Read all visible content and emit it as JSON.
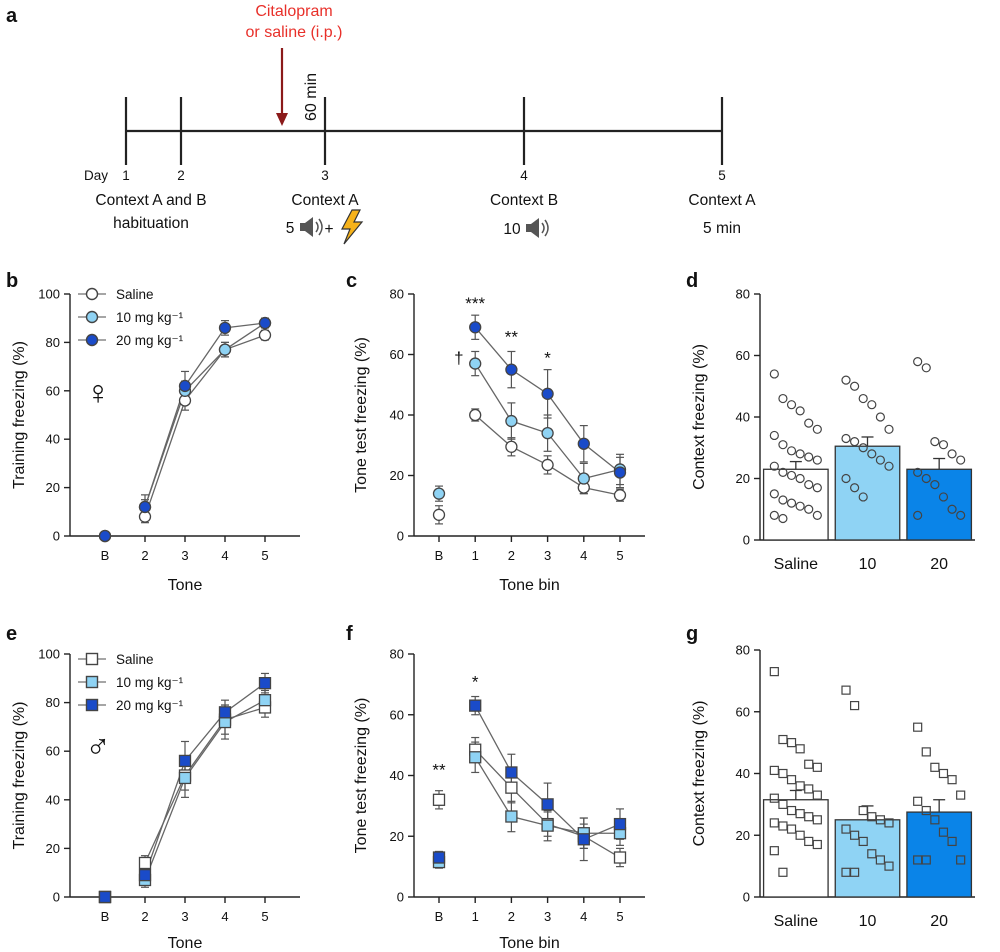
{
  "colors": {
    "saline": "#ffffff",
    "low": "#8fd3f4",
    "high": "#1a4bc9",
    "bar_high": "#0a84e8",
    "drug_arrow": "#8b1a1a",
    "drug_text": "#e8302a",
    "line": "#333333"
  },
  "timeline": {
    "panel_label": "a",
    "drug_label": [
      "Citalopram",
      "or saline (i.p.)"
    ],
    "delay_label": "60 min",
    "day_prefix": "Day",
    "days": [
      {
        "day": "1",
        "lines": [
          "Context A and B",
          "habituation"
        ]
      },
      {
        "day": "2",
        "lines": []
      },
      {
        "day": "3",
        "lines": [
          "Context A",
          "5"
        ]
      },
      {
        "day": "4",
        "lines": [
          "Context B",
          "10"
        ]
      },
      {
        "day": "5",
        "lines": [
          "Context A",
          "5 min"
        ]
      }
    ],
    "plus": "+"
  },
  "legend": {
    "saline": "Saline",
    "low": "10 mg kg⁻¹",
    "high": "20 mg kg⁻¹"
  },
  "sex_symbols": {
    "female": "♀",
    "male": "♂"
  },
  "chart_data": [
    {
      "id": "b",
      "panel_label": "b",
      "type": "line",
      "marker": "circle",
      "sex": "female",
      "xlabel": "Tone",
      "ylabel": "Training freezing (%)",
      "categories": [
        "B",
        "2",
        "3",
        "4",
        "5"
      ],
      "ylim": [
        0,
        100
      ],
      "yticks": [
        0,
        20,
        40,
        60,
        80,
        100
      ],
      "series": [
        {
          "name": "Saline",
          "values": [
            0,
            8,
            56,
            77,
            83
          ],
          "errors": [
            1,
            2.5,
            4,
            3,
            2
          ]
        },
        {
          "name": "10 mg kg⁻¹",
          "values": [
            0,
            12,
            60,
            77,
            88
          ],
          "errors": [
            1,
            3,
            4,
            3,
            2
          ]
        },
        {
          "name": "20 mg kg⁻¹",
          "values": [
            0,
            12,
            62,
            86,
            88
          ],
          "errors": [
            1,
            5,
            6,
            3,
            2
          ]
        }
      ],
      "annotations": []
    },
    {
      "id": "c",
      "panel_label": "c",
      "type": "line",
      "marker": "circle",
      "xlabel": "Tone bin",
      "ylabel": "Tone test freezing (%)",
      "categories": [
        "B",
        "1",
        "2",
        "3",
        "4",
        "5"
      ],
      "ylim": [
        0,
        80
      ],
      "yticks": [
        0,
        20,
        40,
        60,
        80
      ],
      "series": [
        {
          "name": "Saline",
          "values": [
            7,
            40,
            29.5,
            23.5,
            16,
            13.5
          ],
          "errors": [
            3,
            2,
            3,
            3,
            2,
            2
          ]
        },
        {
          "name": "10 mg kg⁻¹",
          "values": [
            14,
            57,
            38,
            34,
            19,
            22
          ],
          "errors": [
            2.5,
            4,
            6,
            6,
            5,
            5
          ]
        },
        {
          "name": "20 mg kg⁻¹",
          "values": [
            null,
            69,
            55,
            47,
            30.5,
            21
          ],
          "errors": [
            0,
            4,
            6,
            8,
            6,
            5
          ]
        }
      ],
      "annotations": [
        {
          "cat": "1",
          "text": "***",
          "y": 75
        },
        {
          "cat": "2",
          "text": "**",
          "y": 64
        },
        {
          "cat": "3",
          "text": "*",
          "y": 57
        },
        {
          "cat": "1",
          "text": "†",
          "y": 57,
          "dx": -0.45
        }
      ]
    },
    {
      "id": "d",
      "panel_label": "d",
      "type": "bar",
      "marker": "circle",
      "ylabel": "Context freezing (%)",
      "categories": [
        "Saline",
        "10",
        "20"
      ],
      "ylim": [
        0,
        80
      ],
      "yticks": [
        0,
        20,
        40,
        60,
        80
      ],
      "values": [
        23,
        30.5,
        23
      ],
      "errors": [
        2.5,
        3,
        3.5
      ],
      "points": [
        [
          54,
          46,
          44,
          42,
          38,
          36,
          34,
          31,
          29,
          28,
          27,
          26,
          24,
          22,
          21,
          20,
          18,
          17,
          15,
          13,
          12,
          11,
          10,
          8,
          8,
          7
        ],
        [
          52,
          50,
          46,
          44,
          40,
          36,
          33,
          32,
          30,
          28,
          26,
          24,
          20,
          17,
          14
        ],
        [
          58,
          56,
          32,
          31,
          28,
          26,
          22,
          20,
          18,
          14,
          10,
          8,
          8
        ]
      ]
    },
    {
      "id": "e",
      "panel_label": "e",
      "type": "line",
      "marker": "square",
      "sex": "male",
      "xlabel": "Tone",
      "ylabel": "Training freezing (%)",
      "categories": [
        "B",
        "2",
        "3",
        "4",
        "5"
      ],
      "ylim": [
        0,
        100
      ],
      "yticks": [
        0,
        20,
        40,
        60,
        80,
        100
      ],
      "series": [
        {
          "name": "Saline",
          "values": [
            0,
            14,
            50,
            73,
            78
          ],
          "errors": [
            1,
            3,
            6,
            6,
            4
          ]
        },
        {
          "name": "10 mg kg⁻¹",
          "values": [
            0,
            7,
            49,
            72,
            81
          ],
          "errors": [
            1,
            3,
            8,
            7,
            4
          ]
        },
        {
          "name": "20 mg kg⁻¹",
          "values": [
            0,
            9,
            56,
            76,
            88
          ],
          "errors": [
            1,
            4,
            8,
            5,
            4
          ]
        }
      ],
      "annotations": []
    },
    {
      "id": "f",
      "panel_label": "f",
      "type": "line",
      "marker": "square",
      "xlabel": "Tone bin",
      "ylabel": "Tone test freezing (%)",
      "categories": [
        "B",
        "1",
        "2",
        "3",
        "4",
        "5"
      ],
      "ylim": [
        0,
        80
      ],
      "yticks": [
        0,
        20,
        40,
        60,
        80
      ],
      "series": [
        {
          "name": "Saline",
          "values": [
            32,
            48.5,
            36,
            24,
            20,
            13
          ],
          "errors": [
            3,
            4,
            5,
            4,
            4,
            3
          ]
        },
        {
          "name": "10 mg kg⁻¹",
          "values": [
            11.5,
            46,
            26.5,
            23.5,
            21,
            21
          ],
          "errors": [
            2,
            5,
            5,
            5,
            5,
            4
          ]
        },
        {
          "name": "20 mg kg⁻¹",
          "values": [
            13,
            63,
            41,
            30.5,
            19,
            24
          ],
          "errors": [
            2,
            3,
            6,
            7,
            7,
            5
          ]
        }
      ],
      "annotations": [
        {
          "cat": "B",
          "text": "**",
          "y": 40
        },
        {
          "cat": "1",
          "text": "*",
          "y": 69
        }
      ]
    },
    {
      "id": "g",
      "panel_label": "g",
      "type": "bar",
      "marker": "square",
      "ylabel": "Context freezing (%)",
      "categories": [
        "Saline",
        "10",
        "20"
      ],
      "ylim": [
        0,
        80
      ],
      "yticks": [
        0,
        20,
        40,
        60,
        80
      ],
      "values": [
        31.5,
        25,
        27.5
      ],
      "errors": [
        3,
        4.5,
        4
      ],
      "points": [
        [
          73,
          51,
          50,
          48,
          43,
          42,
          41,
          40,
          38,
          36,
          35,
          33,
          32,
          30,
          28,
          27,
          26,
          25,
          24,
          23,
          22,
          20,
          18,
          17,
          15,
          8
        ],
        [
          67,
          62,
          28,
          26,
          25,
          24,
          22,
          20,
          18,
          14,
          12,
          10,
          8,
          8
        ],
        [
          55,
          47,
          42,
          40,
          38,
          33,
          31,
          28,
          25,
          21,
          18,
          12,
          12,
          12
        ]
      ]
    }
  ]
}
